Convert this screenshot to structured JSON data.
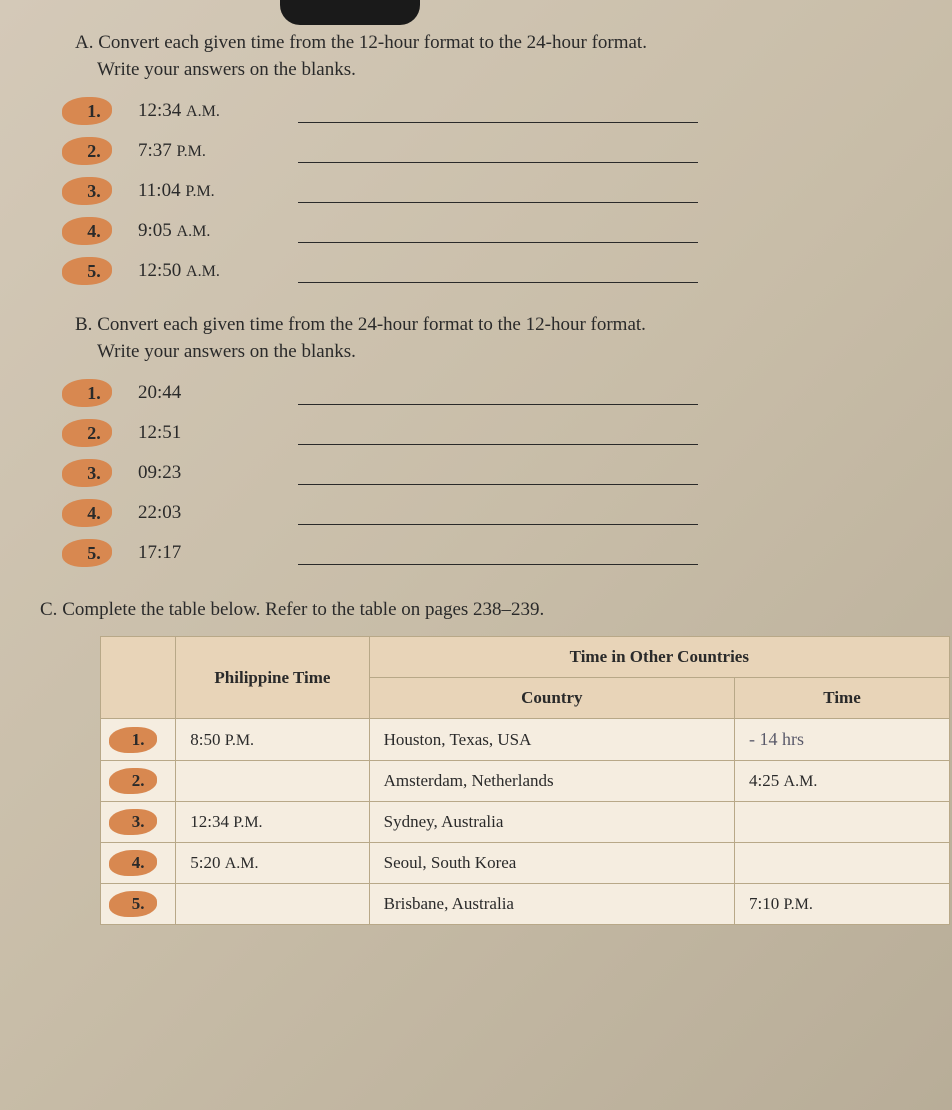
{
  "sectionA": {
    "letter": "A.",
    "instruction": "Convert each given time from the 12-hour format to the 24-hour format.",
    "subInstruction": "Write your answers on the blanks.",
    "questions": [
      {
        "num": "1.",
        "text": "12:34",
        "suffix": "A.M."
      },
      {
        "num": "2.",
        "text": "7:37",
        "suffix": "P.M."
      },
      {
        "num": "3.",
        "text": "11:04",
        "suffix": "P.M."
      },
      {
        "num": "4.",
        "text": "9:05",
        "suffix": "A.M."
      },
      {
        "num": "5.",
        "text": "12:50",
        "suffix": "A.M."
      }
    ]
  },
  "sectionB": {
    "letter": "B.",
    "instruction": "Convert each given time from the 24-hour format to the 12-hour format.",
    "subInstruction": "Write your answers on the blanks.",
    "questions": [
      {
        "num": "1.",
        "text": "20:44"
      },
      {
        "num": "2.",
        "text": "12:51"
      },
      {
        "num": "3.",
        "text": "09:23"
      },
      {
        "num": "4.",
        "text": "22:03"
      },
      {
        "num": "5.",
        "text": "17:17"
      }
    ]
  },
  "sectionC": {
    "letter": "C.",
    "instruction": "Complete the table below. Refer to the table on pages 238–239.",
    "table": {
      "headers": {
        "phTime": "Philippine Time",
        "otherCountries": "Time in Other Countries",
        "country": "Country",
        "time": "Time"
      },
      "rows": [
        {
          "num": "1.",
          "phTime": "8:50",
          "phSuffix": "P.M.",
          "country": "Houston, Texas, USA",
          "time": "- 14 hrs",
          "timeClass": "handwritten"
        },
        {
          "num": "2.",
          "phTime": "",
          "phSuffix": "",
          "country": "Amsterdam, Netherlands",
          "time": "4:25",
          "timeSuffix": "A.M."
        },
        {
          "num": "3.",
          "phTime": "12:34",
          "phSuffix": "P.M.",
          "country": "Sydney, Australia",
          "time": "",
          "timeSuffix": ""
        },
        {
          "num": "4.",
          "phTime": "5:20",
          "phSuffix": "A.M.",
          "country": "Seoul, South Korea",
          "time": "",
          "timeSuffix": ""
        },
        {
          "num": "5.",
          "phTime": "",
          "phSuffix": "",
          "country": "Brisbane, Australia",
          "time": "7:10",
          "timeSuffix": "P.M."
        }
      ]
    }
  }
}
